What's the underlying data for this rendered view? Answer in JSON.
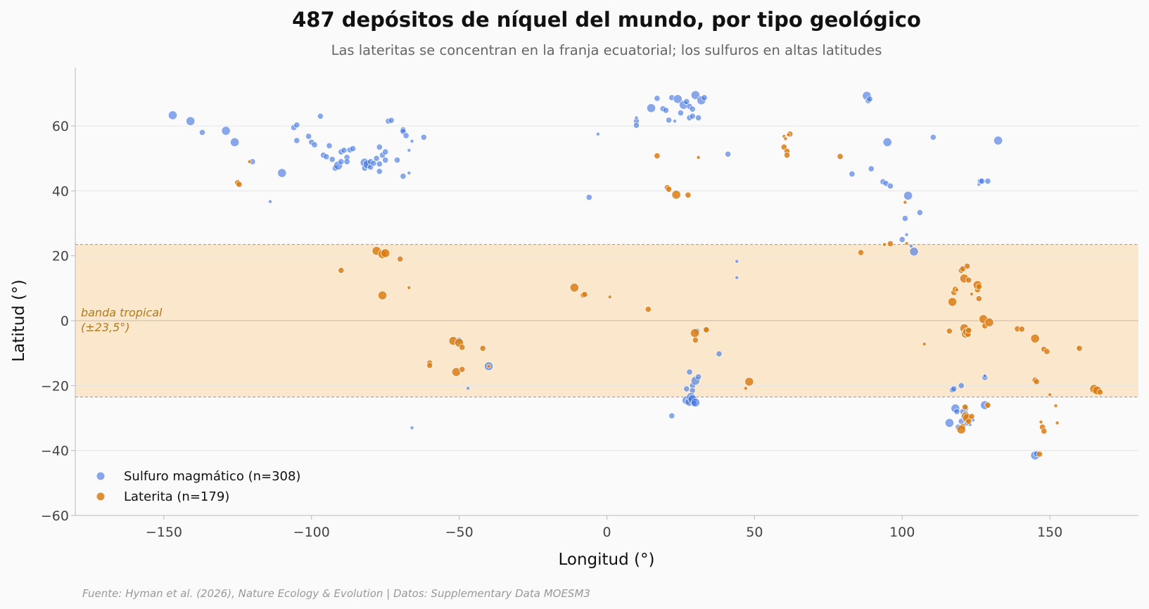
{
  "title": "487 depósitos de níquel del mundo, por tipo geológico",
  "subtitle": "Las lateritas se concentran en la franja ecuatorial; los sulfuros en altas latitudes",
  "source": "Fuente: Hyman et al. (2026), Nature Ecology & Evolution | Datos: Supplementary Data MOESM3",
  "colors": {
    "sulfuro": "#3b6fe0",
    "laterita": "#d97c14",
    "band": "#fbe8cc",
    "background": "#fafafa"
  },
  "chart_data": {
    "type": "scatter",
    "title": "487 depósitos de níquel del mundo, por tipo geológico",
    "subtitle": "Las lateritas se concentran en la franja ecuatorial; los sulfuros en altas latitudes",
    "xlabel": "Longitud (°)",
    "ylabel": "Latitud (°)",
    "xlim": [
      -180,
      180
    ],
    "ylim": [
      -60,
      78
    ],
    "xticks": [
      -150,
      -100,
      -50,
      0,
      50,
      100,
      150
    ],
    "xtick_labels": [
      "−150",
      "−100",
      "−50",
      "0",
      "50",
      "100",
      "150"
    ],
    "yticks": [
      -60,
      -40,
      -20,
      0,
      20,
      40,
      60
    ],
    "ytick_labels": [
      "−60",
      "−40",
      "−20",
      "0",
      "20",
      "40",
      "60"
    ],
    "grid": "horizontal",
    "legend_position": "lower-left",
    "band": {
      "lat_min": -23.5,
      "lat_max": 23.5,
      "label_line1": "banda tropical",
      "label_line2": "(±23,5°)"
    },
    "series": [
      {
        "name": "Sulfuro magmático (n=308)",
        "color": "#3b6fe0",
        "points": [
          [
            -147,
            63.3,
            2
          ],
          [
            -141,
            61.5,
            2
          ],
          [
            -137,
            58,
            1
          ],
          [
            -129,
            58.5,
            2
          ],
          [
            -126,
            55,
            2
          ],
          [
            -120,
            49,
            1
          ],
          [
            -114,
            36.7,
            0
          ],
          [
            -110,
            45.5,
            2
          ],
          [
            -106,
            59.5,
            1
          ],
          [
            -105,
            60.3,
            1
          ],
          [
            -105,
            55.5,
            1
          ],
          [
            -101,
            56.8,
            1
          ],
          [
            -100,
            55,
            1
          ],
          [
            -99,
            54.2,
            1
          ],
          [
            -97,
            63,
            1
          ],
          [
            -96,
            51,
            1
          ],
          [
            -95,
            50.5,
            1
          ],
          [
            -94,
            53.9,
            1
          ],
          [
            -93,
            49.7,
            1
          ],
          [
            -92,
            47,
            1
          ],
          [
            -91,
            47.8,
            2
          ],
          [
            -90,
            52,
            1
          ],
          [
            -90,
            49,
            1
          ],
          [
            -89,
            52.5,
            1
          ],
          [
            -88,
            50.3,
            1
          ],
          [
            -88,
            49,
            1
          ],
          [
            -87,
            52.6,
            1
          ],
          [
            -86,
            53,
            1
          ],
          [
            -82,
            48.7,
            2
          ],
          [
            -82,
            47,
            1
          ],
          [
            -81,
            48.2,
            2
          ],
          [
            -80,
            47.3,
            1
          ],
          [
            -80,
            49,
            1
          ],
          [
            -79,
            48.5,
            1
          ],
          [
            -78,
            50,
            1
          ],
          [
            -77,
            46,
            1
          ],
          [
            -77,
            53.5,
            1
          ],
          [
            -77,
            48.3,
            1
          ],
          [
            -76,
            51,
            1
          ],
          [
            -75,
            52,
            1
          ],
          [
            -75,
            49.5,
            1
          ],
          [
            -74,
            61.5,
            1
          ],
          [
            -73,
            61.7,
            1
          ],
          [
            -71,
            49.5,
            1
          ],
          [
            -69,
            58.8,
            1
          ],
          [
            -69,
            58.3,
            1
          ],
          [
            -68,
            57,
            1
          ],
          [
            -69,
            44.5,
            1
          ],
          [
            -67,
            45.5,
            0
          ],
          [
            -67,
            52.5,
            0
          ],
          [
            -66,
            55.3,
            0
          ],
          [
            -62,
            56.5,
            1
          ],
          [
            -66,
            -33,
            0
          ],
          [
            -40,
            -14,
            2
          ],
          [
            -47,
            -20.8,
            0
          ],
          [
            -50,
            -6,
            1
          ],
          [
            -3,
            57.5,
            0
          ],
          [
            -6,
            38,
            1
          ],
          [
            10,
            61.5,
            1
          ],
          [
            10,
            60.2,
            1
          ],
          [
            10,
            62.5,
            0
          ],
          [
            15,
            65.5,
            2
          ],
          [
            17,
            68.5,
            1
          ],
          [
            19,
            65.3,
            1
          ],
          [
            20,
            64.8,
            1
          ],
          [
            22,
            68.7,
            1
          ],
          [
            21,
            61.8,
            1
          ],
          [
            23,
            61.5,
            0
          ],
          [
            24,
            68.3,
            2
          ],
          [
            25,
            64,
            1
          ],
          [
            26,
            66.5,
            2
          ],
          [
            27,
            67.5,
            1
          ],
          [
            28,
            66,
            1
          ],
          [
            28,
            62.5,
            1
          ],
          [
            29,
            65.2,
            1
          ],
          [
            29,
            63,
            1
          ],
          [
            30,
            69.5,
            2
          ],
          [
            31,
            62.5,
            1
          ],
          [
            32,
            67.9,
            2
          ],
          [
            33,
            68.7,
            1
          ],
          [
            41,
            51.3,
            1
          ],
          [
            44,
            18.3,
            0
          ],
          [
            44,
            13.3,
            0
          ],
          [
            38,
            -10.2,
            1
          ],
          [
            28,
            -15.8,
            1
          ],
          [
            29,
            -20,
            1
          ],
          [
            30,
            -18.5,
            2
          ],
          [
            31,
            -17.3,
            1
          ],
          [
            29,
            -21.5,
            1
          ],
          [
            27,
            -21,
            1
          ],
          [
            27,
            -24.5,
            2
          ],
          [
            28,
            -25,
            2
          ],
          [
            28.5,
            -23.5,
            2
          ],
          [
            29,
            -24.2,
            2
          ],
          [
            29.5,
            -25.5,
            1
          ],
          [
            30,
            -25.2,
            2
          ],
          [
            22,
            -29.3,
            1
          ],
          [
            30.5,
            -3.2,
            1
          ],
          [
            83,
            45.2,
            1
          ],
          [
            88,
            69.3,
            2
          ],
          [
            88.5,
            67.8,
            1
          ],
          [
            89,
            68.3,
            1
          ],
          [
            89.5,
            46.8,
            1
          ],
          [
            93.5,
            42.8,
            1
          ],
          [
            94.5,
            42.3,
            1
          ],
          [
            95,
            55,
            2
          ],
          [
            96,
            41.5,
            1
          ],
          [
            100,
            25,
            1
          ],
          [
            101,
            31.5,
            1
          ],
          [
            101.5,
            26.5,
            0
          ],
          [
            102,
            38.5,
            2
          ],
          [
            103,
            23,
            0
          ],
          [
            104,
            21.3,
            2
          ],
          [
            106,
            33.3,
            1
          ],
          [
            110.5,
            56.5,
            1
          ],
          [
            117,
            -21.3,
            1
          ],
          [
            117.5,
            -21,
            1
          ],
          [
            118,
            -27,
            2
          ],
          [
            118.5,
            -28,
            1
          ],
          [
            120,
            -20,
            1
          ],
          [
            116,
            -31.5,
            2
          ],
          [
            119,
            -32.8,
            1
          ],
          [
            120,
            -31,
            1
          ],
          [
            121,
            -29.5,
            1
          ],
          [
            121.5,
            -27,
            1
          ],
          [
            122,
            -31.5,
            1
          ],
          [
            123,
            -32,
            0
          ],
          [
            124,
            -30.6,
            0
          ],
          [
            120.5,
            -28,
            1
          ],
          [
            121.5,
            -28.6,
            1
          ],
          [
            126,
            42,
            0
          ],
          [
            126.5,
            43,
            1
          ],
          [
            127,
            43,
            1
          ],
          [
            129,
            43,
            1
          ],
          [
            128,
            -17.5,
            1
          ],
          [
            128,
            -17,
            0
          ],
          [
            128,
            -26,
            2
          ],
          [
            132.5,
            55.5,
            2
          ],
          [
            145,
            -41.5,
            2
          ],
          [
            145.5,
            -41,
            1
          ]
        ]
      },
      {
        "name": "Laterita (n=179)",
        "color": "#d97c14",
        "points": [
          [
            -125,
            42.5,
            1
          ],
          [
            -124.5,
            42,
            1
          ],
          [
            -121,
            49,
            0
          ],
          [
            -90,
            15.5,
            1
          ],
          [
            -78,
            21.5,
            2
          ],
          [
            -76,
            20.5,
            2
          ],
          [
            -75,
            20.8,
            2
          ],
          [
            -70,
            19,
            1
          ],
          [
            -76,
            7.8,
            2
          ],
          [
            -67,
            10.2,
            0
          ],
          [
            -60,
            -13,
            1
          ],
          [
            -60,
            -13.8,
            1
          ],
          [
            -52,
            -6.2,
            2
          ],
          [
            -50,
            -6.8,
            2
          ],
          [
            -49,
            -8.2,
            1
          ],
          [
            -51,
            -15.8,
            2
          ],
          [
            -49,
            -15,
            1
          ],
          [
            -42,
            -8.5,
            1
          ],
          [
            -40,
            -14,
            0
          ],
          [
            -11,
            10.2,
            2
          ],
          [
            -8,
            7.9,
            1
          ],
          [
            -7.5,
            8.1,
            1
          ],
          [
            1,
            7.3,
            0
          ],
          [
            14,
            3.5,
            1
          ],
          [
            17,
            50.8,
            1
          ],
          [
            20.5,
            41,
            1
          ],
          [
            21,
            40.5,
            1
          ],
          [
            23.5,
            38.8,
            2
          ],
          [
            27.5,
            38.7,
            1
          ],
          [
            31,
            50.3,
            0
          ],
          [
            29.8,
            -3.8,
            2
          ],
          [
            30,
            -6,
            1
          ],
          [
            33.5,
            -2.7,
            1
          ],
          [
            33.7,
            -2.8,
            1
          ],
          [
            47,
            -20.8,
            0
          ],
          [
            48.2,
            -18.8,
            2
          ],
          [
            60,
            56.8,
            0
          ],
          [
            60,
            53.5,
            1
          ],
          [
            60.5,
            56.1,
            0
          ],
          [
            61,
            52.2,
            1
          ],
          [
            61,
            51,
            1
          ],
          [
            62,
            57.5,
            1
          ],
          [
            61.5,
            57.3,
            0
          ],
          [
            79,
            50.6,
            1
          ],
          [
            86,
            21,
            1
          ],
          [
            94,
            23.5,
            0
          ],
          [
            96,
            23.7,
            1
          ],
          [
            101,
            36.5,
            0
          ],
          [
            101.5,
            23.8,
            0
          ],
          [
            107.5,
            -7.2,
            0
          ],
          [
            116,
            -3.2,
            1
          ],
          [
            117,
            5.8,
            2
          ],
          [
            117.5,
            8.7,
            1
          ],
          [
            118,
            9.7,
            1
          ],
          [
            118.5,
            9.5,
            0
          ],
          [
            120,
            15.5,
            1
          ],
          [
            120.5,
            16,
            1
          ],
          [
            121,
            13,
            2
          ],
          [
            122,
            16.8,
            1
          ],
          [
            122.5,
            12.5,
            1
          ],
          [
            123.5,
            8.2,
            0
          ],
          [
            125.5,
            9.5,
            1
          ],
          [
            125.5,
            11,
            2
          ],
          [
            126,
            10.5,
            1
          ],
          [
            126,
            6.8,
            1
          ],
          [
            121,
            -2.3,
            2
          ],
          [
            121.5,
            -4,
            2
          ],
          [
            122,
            -3.5,
            2
          ],
          [
            122.3,
            -4.2,
            1
          ],
          [
            122.5,
            -3,
            1
          ],
          [
            127.5,
            0.5,
            2
          ],
          [
            128,
            -1.6,
            1
          ],
          [
            129.5,
            -0.5,
            2
          ],
          [
            121.3,
            -26.6,
            1
          ],
          [
            121.5,
            -29.5,
            2
          ],
          [
            122,
            -30,
            2
          ],
          [
            122.5,
            -31,
            1
          ],
          [
            120.5,
            -32.5,
            1
          ],
          [
            120,
            -33.5,
            2
          ],
          [
            129,
            -26,
            1
          ],
          [
            123.5,
            -29.5,
            1
          ],
          [
            139,
            -2.5,
            1
          ],
          [
            140.5,
            -2.6,
            1
          ],
          [
            145,
            -5.5,
            2
          ],
          [
            145,
            -18.3,
            1
          ],
          [
            145.5,
            -18.8,
            1
          ],
          [
            146.5,
            -41.1,
            1
          ],
          [
            147,
            -31.2,
            0
          ],
          [
            147.5,
            -32.8,
            1
          ],
          [
            148,
            -34,
            1
          ],
          [
            148,
            -8.8,
            1
          ],
          [
            149,
            -9.5,
            1
          ],
          [
            150,
            -22.8,
            0
          ],
          [
            152,
            -26.2,
            0
          ],
          [
            152.5,
            -31.5,
            0
          ],
          [
            159.5,
            -8.3,
            0
          ],
          [
            160,
            -8.5,
            1
          ],
          [
            165,
            -21,
            2
          ],
          [
            166,
            -21.5,
            2
          ],
          [
            167,
            -22,
            1
          ]
        ]
      }
    ]
  }
}
